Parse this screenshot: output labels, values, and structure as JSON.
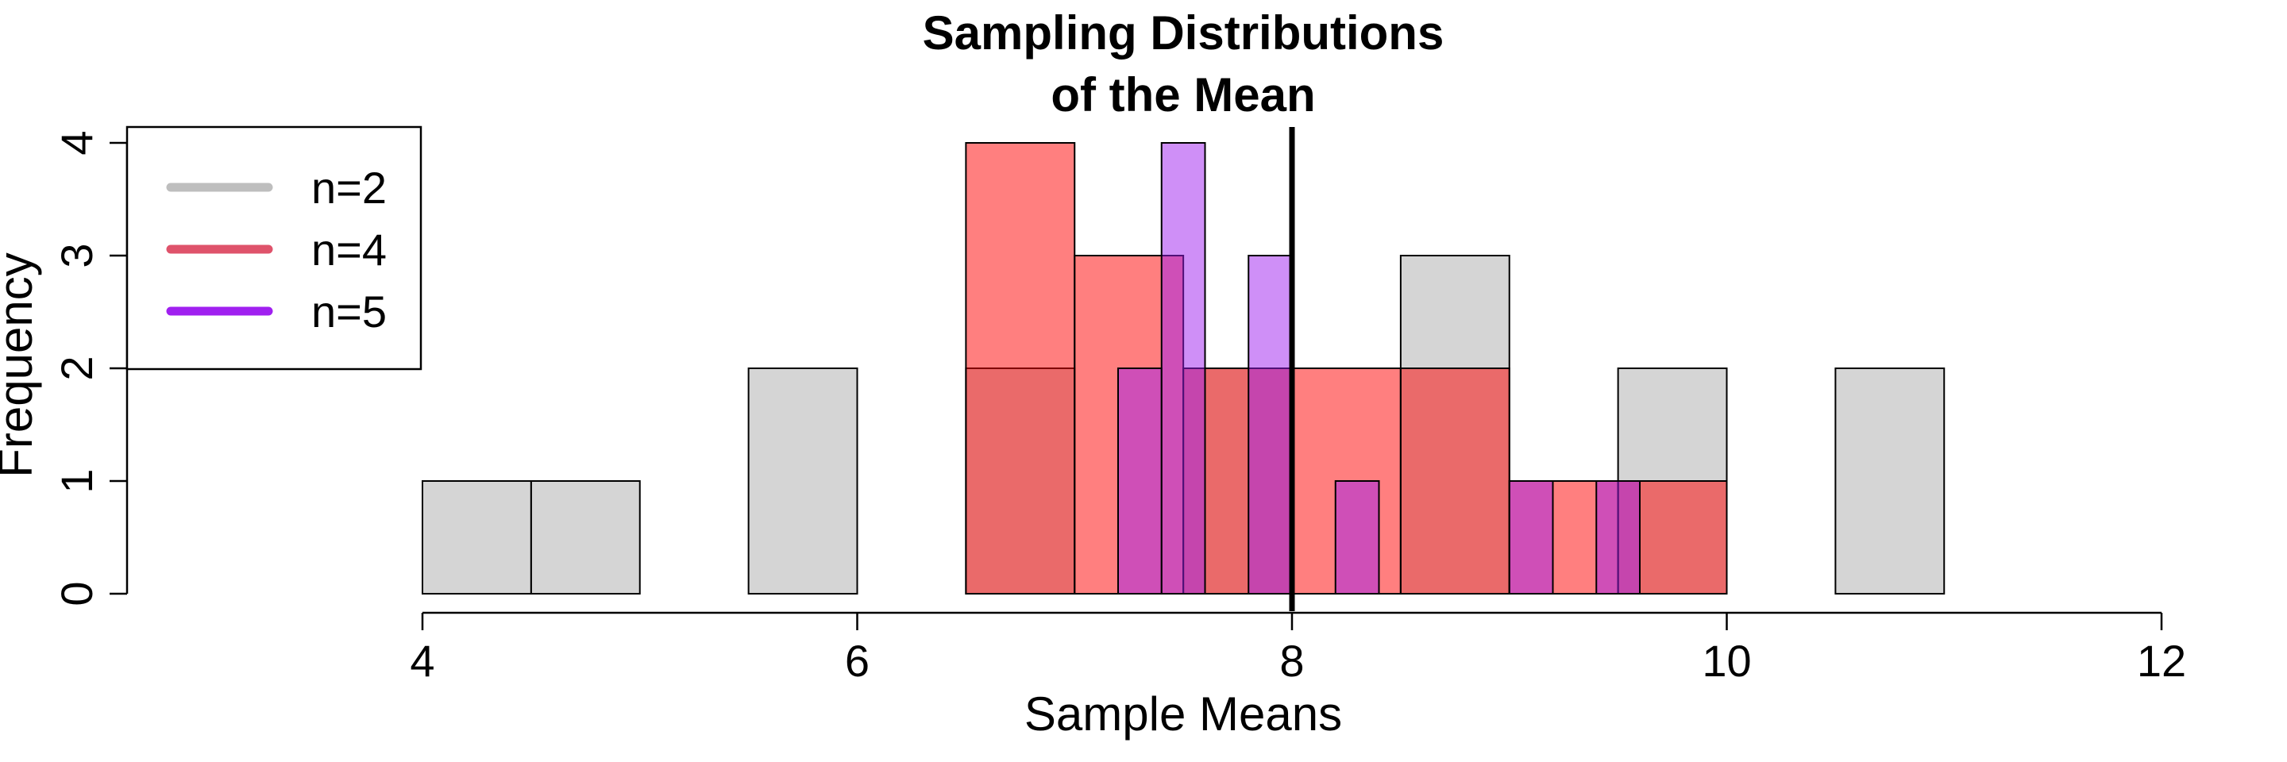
{
  "chart_data": {
    "type": "bar",
    "title_lines": [
      "Sampling Distributions",
      "of the Mean"
    ],
    "xlabel": "Sample Means",
    "ylabel": "Frequency",
    "xlim": [
      4,
      12
    ],
    "ylim": [
      0,
      4
    ],
    "x_ticks": [
      4,
      6,
      8,
      10,
      12
    ],
    "y_ticks": [
      0,
      1,
      2,
      3,
      4
    ],
    "grid": false,
    "legend_position": "top-left",
    "reference_line": {
      "x": 8,
      "color": "#000000"
    },
    "series": [
      {
        "name": "n=2",
        "color": "#bebebe",
        "fill": "rgba(190,190,190,0.65)",
        "bins": [
          {
            "x0": 4.0,
            "x1": 4.5,
            "count": 1
          },
          {
            "x0": 4.5,
            "x1": 5.0,
            "count": 1
          },
          {
            "x0": 5.5,
            "x1": 6.0,
            "count": 2
          },
          {
            "x0": 6.5,
            "x1": 7.0,
            "count": 2
          },
          {
            "x0": 7.5,
            "x1": 8.0,
            "count": 2
          },
          {
            "x0": 8.5,
            "x1": 9.0,
            "count": 3
          },
          {
            "x0": 9.5,
            "x1": 10.0,
            "count": 2
          },
          {
            "x0": 10.5,
            "x1": 11.0,
            "count": 2
          }
        ]
      },
      {
        "name": "n=4",
        "color": "#df536b",
        "fill": "rgba(255,0,0,0.5)",
        "bins": [
          {
            "x0": 6.5,
            "x1": 7.0,
            "count": 4
          },
          {
            "x0": 7.0,
            "x1": 7.5,
            "count": 3
          },
          {
            "x0": 7.5,
            "x1": 8.0,
            "count": 2
          },
          {
            "x0": 8.0,
            "x1": 8.5,
            "count": 2
          },
          {
            "x0": 8.5,
            "x1": 9.0,
            "count": 2
          },
          {
            "x0": 9.0,
            "x1": 9.5,
            "count": 1
          },
          {
            "x0": 9.5,
            "x1": 10.0,
            "count": 1
          }
        ]
      },
      {
        "name": "n=5",
        "color": "#a020f0",
        "fill": "rgba(160,32,240,0.5)",
        "bins": [
          {
            "x0": 7.2,
            "x1": 7.4,
            "count": 2
          },
          {
            "x0": 7.4,
            "x1": 7.6,
            "count": 4
          },
          {
            "x0": 7.8,
            "x1": 8.0,
            "count": 3
          },
          {
            "x0": 8.2,
            "x1": 8.4,
            "count": 1
          },
          {
            "x0": 9.0,
            "x1": 9.2,
            "count": 1
          },
          {
            "x0": 9.4,
            "x1": 9.6,
            "count": 1
          }
        ]
      }
    ]
  }
}
